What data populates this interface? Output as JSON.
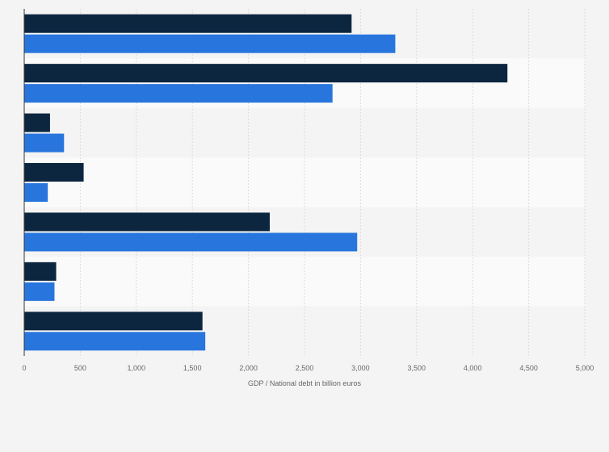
{
  "chart_data": {
    "type": "bar",
    "orientation": "horizontal",
    "title": "",
    "xlabel": "GDP / National debt in billion euros",
    "ylabel": "",
    "xlim": [
      0,
      5000
    ],
    "xticks": [
      0,
      500,
      1000,
      1500,
      2000,
      2500,
      3000,
      3500,
      4000,
      4500,
      5000
    ],
    "xtick_labels": [
      "0",
      "500",
      "1,000",
      "1,500",
      "2,000",
      "2,500",
      "3,000",
      "3,500",
      "4,000",
      "4,500",
      "5,000"
    ],
    "category_count": 7,
    "grid": true,
    "legend": "none",
    "series": [
      {
        "name": "series-1",
        "color": "#0d2640",
        "values": [
          2920,
          4310,
          230,
          530,
          2190,
          285,
          1590
        ]
      },
      {
        "name": "series-2",
        "color": "#2876dd",
        "values": [
          3310,
          2750,
          355,
          210,
          2970,
          270,
          1615
        ]
      }
    ]
  }
}
